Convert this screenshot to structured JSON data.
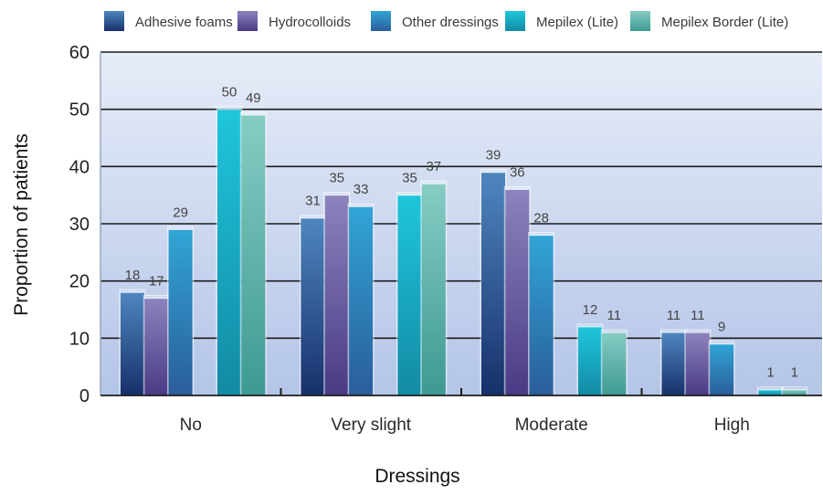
{
  "chart_data": {
    "type": "bar",
    "xlabel": "Dressings",
    "ylabel": "Proportion of patients",
    "ylim": [
      0,
      60
    ],
    "yticks": [
      0,
      10,
      20,
      30,
      40,
      50,
      60
    ],
    "grid": true,
    "legend_position": "top",
    "categories": [
      "No",
      "Very slight",
      "Moderate",
      "High"
    ],
    "groups": [
      {
        "category": "No",
        "left": [
          18,
          17,
          29
        ],
        "right": [
          50,
          49
        ]
      },
      {
        "category": "Very slight",
        "left": [
          31,
          35,
          33
        ],
        "right": [
          35,
          37
        ]
      },
      {
        "category": "Moderate",
        "left": [
          39,
          36,
          28
        ],
        "right": [
          12,
          11
        ]
      },
      {
        "category": "High",
        "left": [
          11,
          11,
          9
        ],
        "right": [
          1,
          1
        ]
      }
    ],
    "series": [
      {
        "name": "Adhesive foams",
        "values": [
          18,
          31,
          39,
          11
        ],
        "color": "#3f6ca6"
      },
      {
        "name": "Hydrocolloids",
        "values": [
          17,
          35,
          36,
          11
        ],
        "color": "#7a6aa8"
      },
      {
        "name": "Other dressings",
        "values": [
          29,
          33,
          28,
          9
        ],
        "color": "#2f8fc4"
      },
      {
        "name": "Mepilex (Lite)",
        "values": [
          50,
          35,
          12,
          1
        ],
        "color": "#17b6cf"
      },
      {
        "name": "Mepilex Border (Lite)",
        "values": [
          49,
          37,
          11,
          1
        ],
        "color": "#6dbcb4"
      }
    ]
  }
}
